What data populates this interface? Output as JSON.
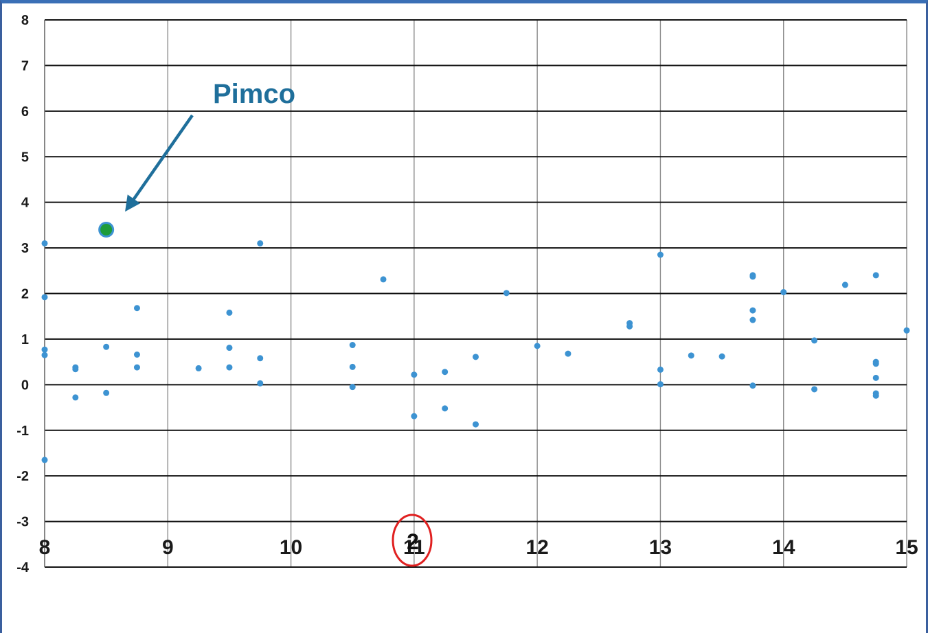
{
  "chart_data": {
    "type": "scatter",
    "title": "",
    "xlabel": "",
    "ylabel": "",
    "xlim": [
      8,
      15
    ],
    "ylim": [
      -4,
      8
    ],
    "x_ticks": [
      "8",
      "9",
      "10",
      "11",
      "12",
      "13",
      "14",
      "15"
    ],
    "y_ticks": [
      "8",
      "7",
      "6",
      "5",
      "4",
      "3",
      "2",
      "1",
      "0",
      "-1",
      "-2",
      "-3",
      "-4"
    ],
    "grid": true,
    "series": [
      {
        "color": "#3d93d2",
        "points": [
          [
            8,
            3.1
          ],
          [
            8,
            1.92
          ],
          [
            8,
            0.77
          ],
          [
            8,
            0.65
          ],
          [
            8,
            -1.65
          ],
          [
            8.25,
            0.38
          ],
          [
            8.25,
            0.34
          ],
          [
            8.25,
            -0.28
          ],
          [
            8.5,
            0.83
          ],
          [
            8.5,
            -0.18
          ],
          [
            8.75,
            1.68
          ],
          [
            8.75,
            0.66
          ],
          [
            8.75,
            0.38
          ],
          [
            9.25,
            0.36
          ],
          [
            9.5,
            1.58
          ],
          [
            9.5,
            0.81
          ],
          [
            9.5,
            0.38
          ],
          [
            9.75,
            3.1
          ],
          [
            9.75,
            0.58
          ],
          [
            9.75,
            0.03
          ],
          [
            10.5,
            0.87
          ],
          [
            10.5,
            0.39
          ],
          [
            10.5,
            -0.05
          ],
          [
            10.75,
            2.31
          ],
          [
            11,
            0.22
          ],
          [
            11,
            -0.69
          ],
          [
            11.25,
            0.28
          ],
          [
            11.25,
            -0.52
          ],
          [
            11.5,
            0.61
          ],
          [
            11.5,
            -0.87
          ],
          [
            11.75,
            2.01
          ],
          [
            12,
            0.85
          ],
          [
            12.25,
            0.68
          ],
          [
            12.75,
            1.35
          ],
          [
            12.75,
            1.28
          ],
          [
            13,
            2.85
          ],
          [
            13,
            0.33
          ],
          [
            13,
            0.01
          ],
          [
            13.25,
            0.64
          ],
          [
            13.5,
            0.62
          ],
          [
            13.75,
            2.4
          ],
          [
            13.75,
            2.37
          ],
          [
            13.75,
            1.63
          ],
          [
            13.75,
            1.42
          ],
          [
            13.75,
            -0.02
          ],
          [
            14,
            2.03
          ],
          [
            14.25,
            0.97
          ],
          [
            14.25,
            -0.1
          ],
          [
            14.5,
            2.19
          ],
          [
            14.75,
            2.4
          ],
          [
            14.75,
            0.5
          ],
          [
            14.75,
            0.46
          ],
          [
            14.75,
            0.15
          ],
          [
            14.75,
            -0.19
          ],
          [
            14.75,
            -0.24
          ],
          [
            15,
            1.19
          ]
        ]
      },
      {
        "name": "Pimco",
        "color": "#1e9c3a",
        "edge_color": "#3d93d2",
        "points": [
          [
            8.5,
            3.4
          ]
        ]
      }
    ],
    "annotations": [
      {
        "text": "Pimco",
        "color": "#1f6f9b",
        "points_to": [
          8.5,
          3.4
        ]
      },
      {
        "text": "2",
        "circle_color": "#e02020"
      }
    ]
  }
}
